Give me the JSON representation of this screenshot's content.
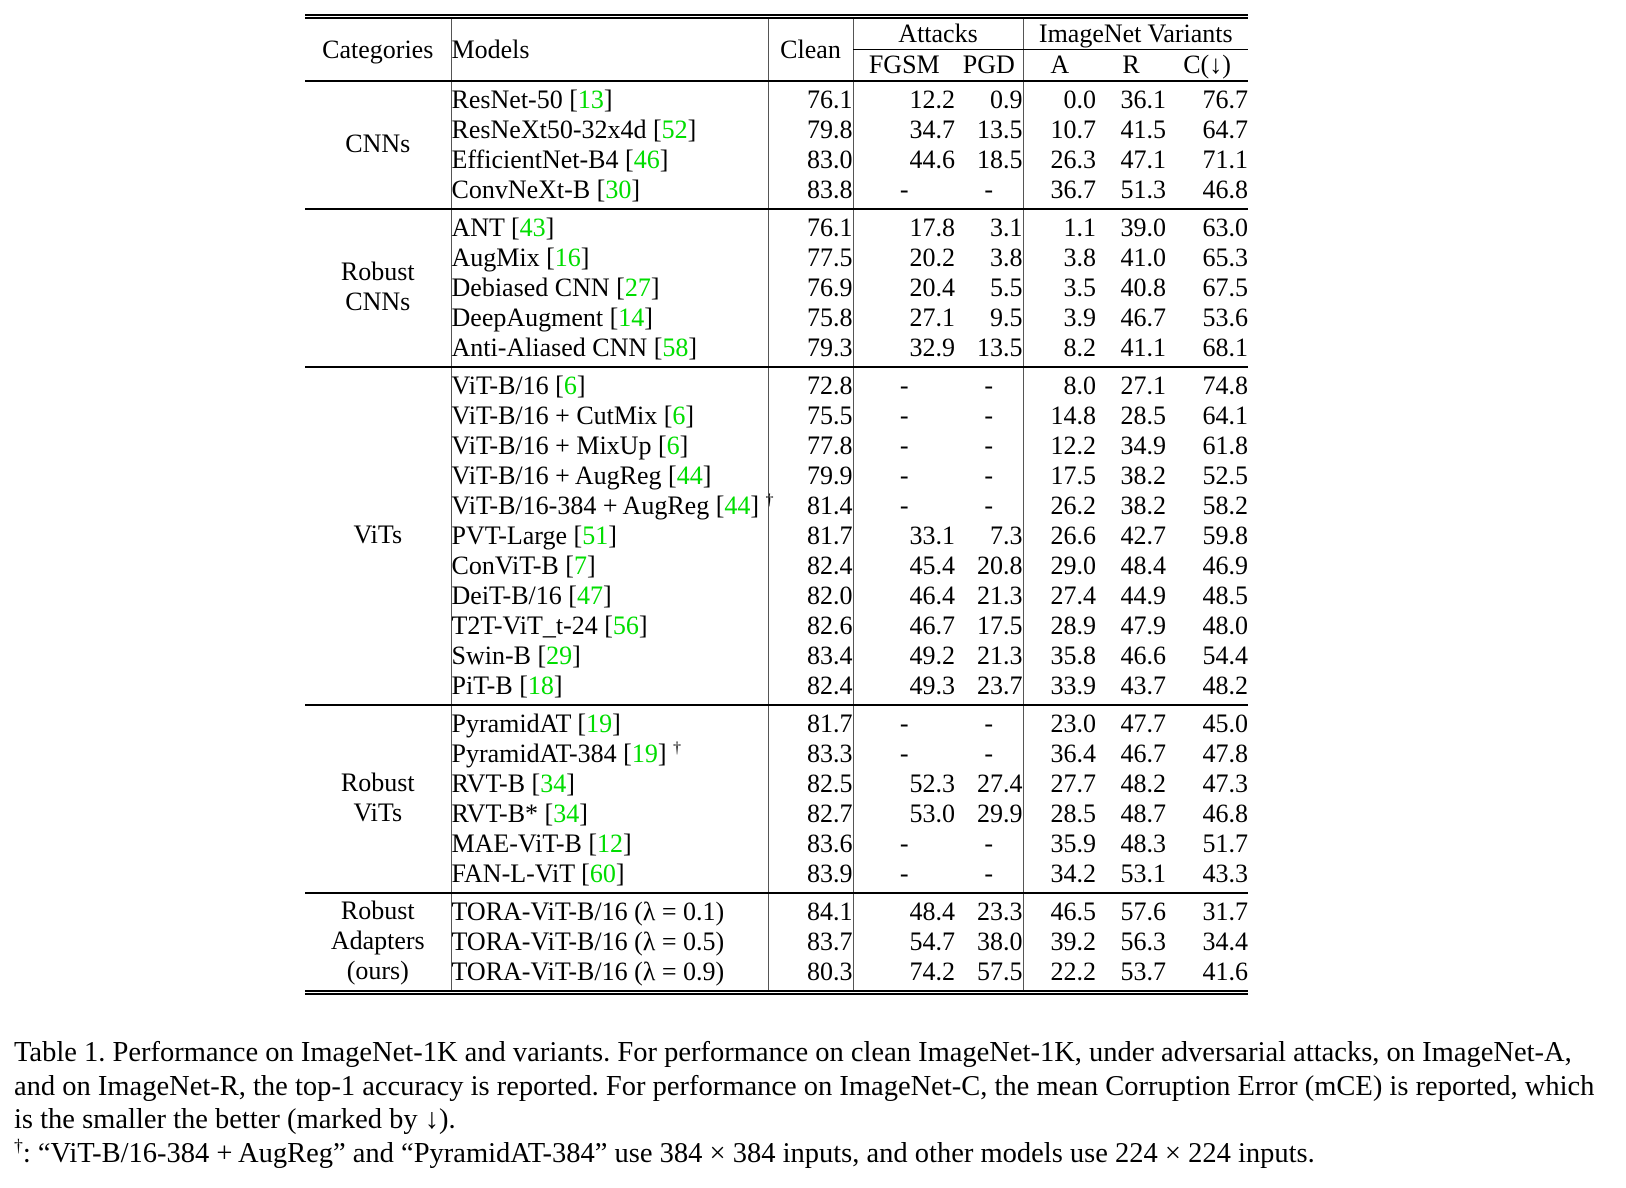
{
  "colors": {
    "citation_green": "#00dd00"
  },
  "table": {
    "headers": {
      "categories": "Categories",
      "models": "Models",
      "clean": "Clean",
      "attacks_group": "Attacks",
      "variants_group": "ImageNet Variants",
      "fgsm": "FGSM",
      "pgd": "PGD",
      "a": "A",
      "r": "R",
      "c": "C(↓)"
    },
    "sections": [
      {
        "category_lines": [
          "CNNs"
        ],
        "rows": [
          {
            "model": "ResNet-50",
            "ref": "13",
            "dagger": false,
            "values": [
              "76.1",
              "12.2",
              "0.9",
              "0.0",
              "36.1",
              "76.7"
            ],
            "bold": [
              0,
              0,
              0,
              0,
              0,
              0
            ]
          },
          {
            "model": "ResNeXt50-32x4d",
            "ref": "52",
            "dagger": false,
            "values": [
              "79.8",
              "34.7",
              "13.5",
              "10.7",
              "41.5",
              "64.7"
            ],
            "bold": [
              0,
              0,
              0,
              0,
              0,
              0
            ]
          },
          {
            "model": "EfficientNet-B4",
            "ref": "46",
            "dagger": false,
            "values": [
              "83.0",
              "44.6",
              "18.5",
              "26.3",
              "47.1",
              "71.1"
            ],
            "bold": [
              0,
              1,
              1,
              0,
              0,
              0
            ]
          },
          {
            "model": "ConvNeXt-B",
            "ref": "30",
            "dagger": false,
            "values": [
              "83.8",
              "-",
              "-",
              "36.7",
              "51.3",
              "46.8"
            ],
            "bold": [
              1,
              0,
              0,
              1,
              1,
              1
            ]
          }
        ]
      },
      {
        "category_lines": [
          "Robust",
          "CNNs"
        ],
        "rows": [
          {
            "model": "ANT",
            "ref": "43",
            "dagger": false,
            "values": [
              "76.1",
              "17.8",
              "3.1",
              "1.1",
              "39.0",
              "63.0"
            ],
            "bold": [
              0,
              0,
              0,
              0,
              0,
              0
            ]
          },
          {
            "model": "AugMix",
            "ref": "16",
            "dagger": false,
            "values": [
              "77.5",
              "20.2",
              "3.8",
              "3.8",
              "41.0",
              "65.3"
            ],
            "bold": [
              0,
              0,
              0,
              0,
              0,
              0
            ]
          },
          {
            "model": "Debiased CNN",
            "ref": "27",
            "dagger": false,
            "values": [
              "76.9",
              "20.4",
              "5.5",
              "3.5",
              "40.8",
              "67.5"
            ],
            "bold": [
              0,
              0,
              0,
              0,
              0,
              0
            ]
          },
          {
            "model": "DeepAugment",
            "ref": "14",
            "dagger": false,
            "values": [
              "75.8",
              "27.1",
              "9.5",
              "3.9",
              "46.7",
              "53.6"
            ],
            "bold": [
              0,
              0,
              0,
              0,
              1,
              1
            ]
          },
          {
            "model": "Anti-Aliased CNN",
            "ref": "58",
            "dagger": false,
            "values": [
              "79.3",
              "32.9",
              "13.5",
              "8.2",
              "41.1",
              "68.1"
            ],
            "bold": [
              1,
              1,
              1,
              1,
              0,
              0
            ]
          }
        ]
      },
      {
        "category_lines": [
          "ViTs"
        ],
        "rows": [
          {
            "model": "ViT-B/16",
            "ref": "6",
            "dagger": false,
            "values": [
              "72.8",
              "-",
              "-",
              "8.0",
              "27.1",
              "74.8"
            ],
            "bold": [
              0,
              0,
              0,
              0,
              0,
              0
            ]
          },
          {
            "model": "ViT-B/16 + CutMix",
            "ref": "6",
            "dagger": false,
            "values": [
              "75.5",
              "-",
              "-",
              "14.8",
              "28.5",
              "64.1"
            ],
            "bold": [
              0,
              0,
              0,
              0,
              0,
              0
            ]
          },
          {
            "model": "ViT-B/16 + MixUp",
            "ref": "6",
            "dagger": false,
            "values": [
              "77.8",
              "-",
              "-",
              "12.2",
              "34.9",
              "61.8"
            ],
            "bold": [
              0,
              0,
              0,
              0,
              0,
              0
            ]
          },
          {
            "model": "ViT-B/16 + AugReg",
            "ref": "44",
            "dagger": false,
            "values": [
              "79.9",
              "-",
              "-",
              "17.5",
              "38.2",
              "52.5"
            ],
            "bold": [
              0,
              0,
              0,
              0,
              0,
              0
            ]
          },
          {
            "model": "ViT-B/16-384 + AugReg",
            "ref": "44",
            "dagger": true,
            "values": [
              "81.4",
              "-",
              "-",
              "26.2",
              "38.2",
              "58.2"
            ],
            "bold": [
              0,
              0,
              0,
              0,
              0,
              0
            ]
          },
          {
            "model": "PVT-Large",
            "ref": "51",
            "dagger": false,
            "values": [
              "81.7",
              "33.1",
              "7.3",
              "26.6",
              "42.7",
              "59.8"
            ],
            "bold": [
              0,
              0,
              0,
              0,
              0,
              0
            ]
          },
          {
            "model": "ConViT-B",
            "ref": "7",
            "dagger": false,
            "values": [
              "82.4",
              "45.4",
              "20.8",
              "29.0",
              "48.4",
              "46.9"
            ],
            "bold": [
              0,
              0,
              0,
              0,
              1,
              1
            ]
          },
          {
            "model": "DeiT-B/16",
            "ref": "47",
            "dagger": false,
            "values": [
              "82.0",
              "46.4",
              "21.3",
              "27.4",
              "44.9",
              "48.5"
            ],
            "bold": [
              0,
              0,
              0,
              0,
              0,
              0
            ]
          },
          {
            "model": "T2T-ViT_t-24",
            "ref": "56",
            "dagger": false,
            "values": [
              "82.6",
              "46.7",
              "17.5",
              "28.9",
              "47.9",
              "48.0"
            ],
            "bold": [
              0,
              0,
              0,
              0,
              0,
              0
            ]
          },
          {
            "model": "Swin-B",
            "ref": "29",
            "dagger": false,
            "values": [
              "83.4",
              "49.2",
              "21.3",
              "35.8",
              "46.6",
              "54.4"
            ],
            "bold": [
              1,
              0,
              0,
              1,
              0,
              0
            ]
          },
          {
            "model": "PiT-B",
            "ref": "18",
            "dagger": false,
            "values": [
              "82.4",
              "49.3",
              "23.7",
              "33.9",
              "43.7",
              "48.2"
            ],
            "bold": [
              0,
              1,
              1,
              0,
              0,
              0
            ]
          }
        ]
      },
      {
        "category_lines": [
          "Robust",
          "ViTs"
        ],
        "rows": [
          {
            "model": "PyramidAT",
            "ref": "19",
            "dagger": false,
            "values": [
              "81.7",
              "-",
              "-",
              "23.0",
              "47.7",
              "45.0"
            ],
            "bold": [
              0,
              0,
              0,
              0,
              0,
              0
            ]
          },
          {
            "model": "PyramidAT-384",
            "ref": "19",
            "dagger": true,
            "values": [
              "83.3",
              "-",
              "-",
              "36.4",
              "46.7",
              "47.8"
            ],
            "bold": [
              0,
              0,
              0,
              1,
              0,
              0
            ]
          },
          {
            "model": "RVT-B",
            "ref": "34",
            "dagger": false,
            "values": [
              "82.5",
              "52.3",
              "27.4",
              "27.7",
              "48.2",
              "47.3"
            ],
            "bold": [
              0,
              0,
              0,
              0,
              0,
              0
            ]
          },
          {
            "model": "RVT-B*",
            "ref": "34",
            "dagger": false,
            "values": [
              "82.7",
              "53.0",
              "29.9",
              "28.5",
              "48.7",
              "46.8"
            ],
            "bold": [
              0,
              1,
              1,
              0,
              0,
              0
            ]
          },
          {
            "model": "MAE-ViT-B",
            "ref": "12",
            "dagger": false,
            "values": [
              "83.6",
              "-",
              "-",
              "35.9",
              "48.3",
              "51.7"
            ],
            "bold": [
              0,
              0,
              0,
              0,
              0,
              0
            ]
          },
          {
            "model": "FAN-L-ViT",
            "ref": "60",
            "dagger": false,
            "values": [
              "83.9",
              "-",
              "-",
              "34.2",
              "53.1",
              "43.3"
            ],
            "bold": [
              1,
              0,
              0,
              0,
              1,
              1
            ]
          }
        ]
      },
      {
        "category_lines": [
          "Robust",
          "Adapters",
          "(ours)"
        ],
        "rows": [
          {
            "model": "TORA-ViT-B/16 (λ = 0.1)",
            "ref": null,
            "dagger": false,
            "values": [
              "84.1",
              "48.4",
              "23.3",
              "46.5",
              "57.6",
              "31.7"
            ],
            "bold": [
              1,
              0,
              0,
              1,
              1,
              1
            ]
          },
          {
            "model": "TORA-ViT-B/16 (λ = 0.5)",
            "ref": null,
            "dagger": false,
            "values": [
              "83.7",
              "54.7",
              "38.0",
              "39.2",
              "56.3",
              "34.4"
            ],
            "bold": [
              0,
              0,
              0,
              0,
              0,
              0
            ]
          },
          {
            "model": "TORA-ViT-B/16 (λ = 0.9)",
            "ref": null,
            "dagger": false,
            "values": [
              "80.3",
              "74.2",
              "57.5",
              "22.2",
              "53.7",
              "41.6"
            ],
            "bold": [
              0,
              1,
              1,
              0,
              0,
              0
            ]
          }
        ]
      }
    ]
  },
  "caption": {
    "lines": [
      "Table 1. Performance on ImageNet-1K and variants. For performance on clean ImageNet-1K, under adversarial attacks, on ImageNet-A,",
      "and on ImageNet-R, the top-1 accuracy is reported. For performance on ImageNet-C, the mean Corruption Error (mCE) is reported, which",
      "is the smaller the better (marked by ↓)."
    ]
  },
  "footnote": {
    "symbol": "†",
    "text": ": “ViT-B/16-384 + AugReg” and “PyramidAT-384” use 384 × 384 inputs, and other models use 224 × 224 inputs."
  }
}
